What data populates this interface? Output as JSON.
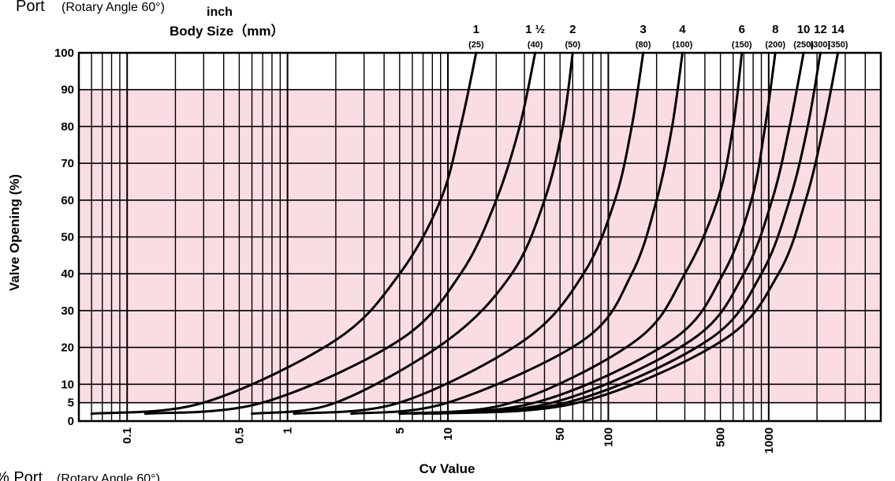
{
  "header": {
    "top_fragment": "Port",
    "top_fragment_sub": "(Rotary Angle 60°)",
    "bottom_fragment": "% Port",
    "bottom_fragment_sub": "(Rotary Angle 60°)",
    "inch_label": "inch",
    "body_size_label": "Body Size（mm）"
  },
  "colors": {
    "shade": "#f9dde3",
    "grid": "#000000",
    "curve": "#000000"
  },
  "chart_data": {
    "type": "line",
    "xlabel": "Cv Value",
    "ylabel": "Valve Opening (%)",
    "x_scale": "log",
    "xlim": [
      0.05,
      5000
    ],
    "ylim": [
      0,
      100
    ],
    "shaded_band_y": [
      5,
      90
    ],
    "y_ticks": [
      0,
      5,
      10,
      20,
      30,
      40,
      50,
      60,
      70,
      80,
      90,
      100
    ],
    "x_tick_labels": [
      {
        "v": 0.1,
        "t": "0.1"
      },
      {
        "v": 0.5,
        "t": "0.5"
      },
      {
        "v": 1,
        "t": "1"
      },
      {
        "v": 5,
        "t": "5"
      },
      {
        "v": 10,
        "t": "10"
      },
      {
        "v": 50,
        "t": "50"
      },
      {
        "v": 100,
        "t": "100"
      },
      {
        "v": 500,
        "t": "500"
      },
      {
        "v": 1000,
        "t": "1000"
      }
    ],
    "grid": true,
    "series": [
      {
        "inch": "1",
        "mm": "(25)",
        "x": [
          0.06,
          0.3,
          2,
          5,
          9,
          12,
          15
        ],
        "y": [
          2,
          5,
          22,
          40,
          60,
          80,
          100
        ]
      },
      {
        "inch": "1 ½",
        "mm": "(40)",
        "x": [
          0.13,
          0.7,
          5,
          12,
          20,
          28,
          35
        ],
        "y": [
          2,
          5,
          22,
          40,
          60,
          80,
          100
        ]
      },
      {
        "inch": "2",
        "mm": "(50)",
        "x": [
          0.6,
          2,
          10,
          25,
          40,
          52,
          60
        ],
        "y": [
          2,
          5,
          22,
          40,
          60,
          80,
          100
        ]
      },
      {
        "inch": "3",
        "mm": "(80)",
        "x": [
          1.1,
          5,
          30,
          70,
          110,
          140,
          165
        ],
        "y": [
          2,
          5,
          22,
          40,
          60,
          80,
          100
        ]
      },
      {
        "inch": "4",
        "mm": "(100)",
        "x": [
          2.5,
          10,
          70,
          140,
          200,
          250,
          290
        ],
        "y": [
          2,
          5,
          22,
          40,
          60,
          80,
          100
        ]
      },
      {
        "inch": "6",
        "mm": "(150)",
        "x": [
          5,
          25,
          150,
          300,
          480,
          600,
          680
        ],
        "y": [
          2,
          5,
          22,
          40,
          60,
          80,
          100
        ]
      },
      {
        "inch": "8",
        "mm": "(200)",
        "x": [
          5,
          35,
          250,
          520,
          780,
          950,
          1100
        ],
        "y": [
          2,
          5,
          22,
          40,
          60,
          80,
          100
        ]
      },
      {
        "inch": "10",
        "mm": "(250)",
        "x": [
          6,
          45,
          330,
          700,
          1050,
          1350,
          1650
        ],
        "y": [
          2,
          5,
          22,
          40,
          60,
          80,
          100
        ]
      },
      {
        "inch": "12",
        "mm": "(300)",
        "x": [
          7,
          55,
          420,
          900,
          1350,
          1750,
          2100
        ],
        "y": [
          2,
          5,
          22,
          40,
          60,
          80,
          100
        ]
      },
      {
        "inch": "14",
        "mm": "(350)",
        "x": [
          8,
          65,
          520,
          1150,
          1700,
          2200,
          2700
        ],
        "y": [
          2,
          5,
          22,
          40,
          60,
          80,
          100
        ]
      }
    ]
  }
}
